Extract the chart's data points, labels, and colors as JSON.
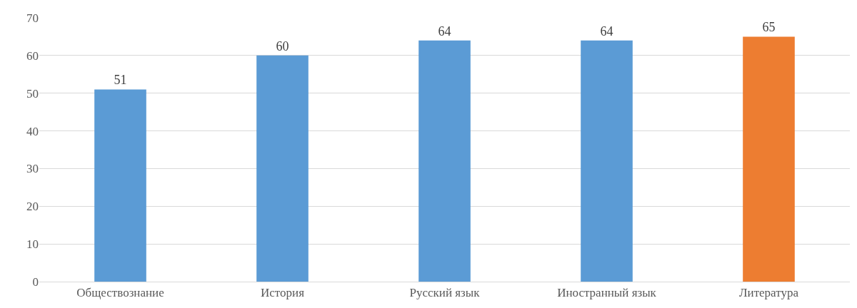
{
  "chart_data": {
    "type": "bar",
    "categories": [
      "Обществознание",
      "История",
      "Русский язык",
      "Иностранный язык",
      "Литература"
    ],
    "values": [
      51,
      60,
      64,
      64,
      65
    ],
    "colors": [
      "#5b9bd5",
      "#5b9bd5",
      "#5b9bd5",
      "#5b9bd5",
      "#ed7d31"
    ],
    "ylim": [
      0,
      70
    ],
    "yticks": [
      0,
      10,
      20,
      30,
      40,
      50,
      60,
      70
    ],
    "grid": "y",
    "data_labels": true
  }
}
